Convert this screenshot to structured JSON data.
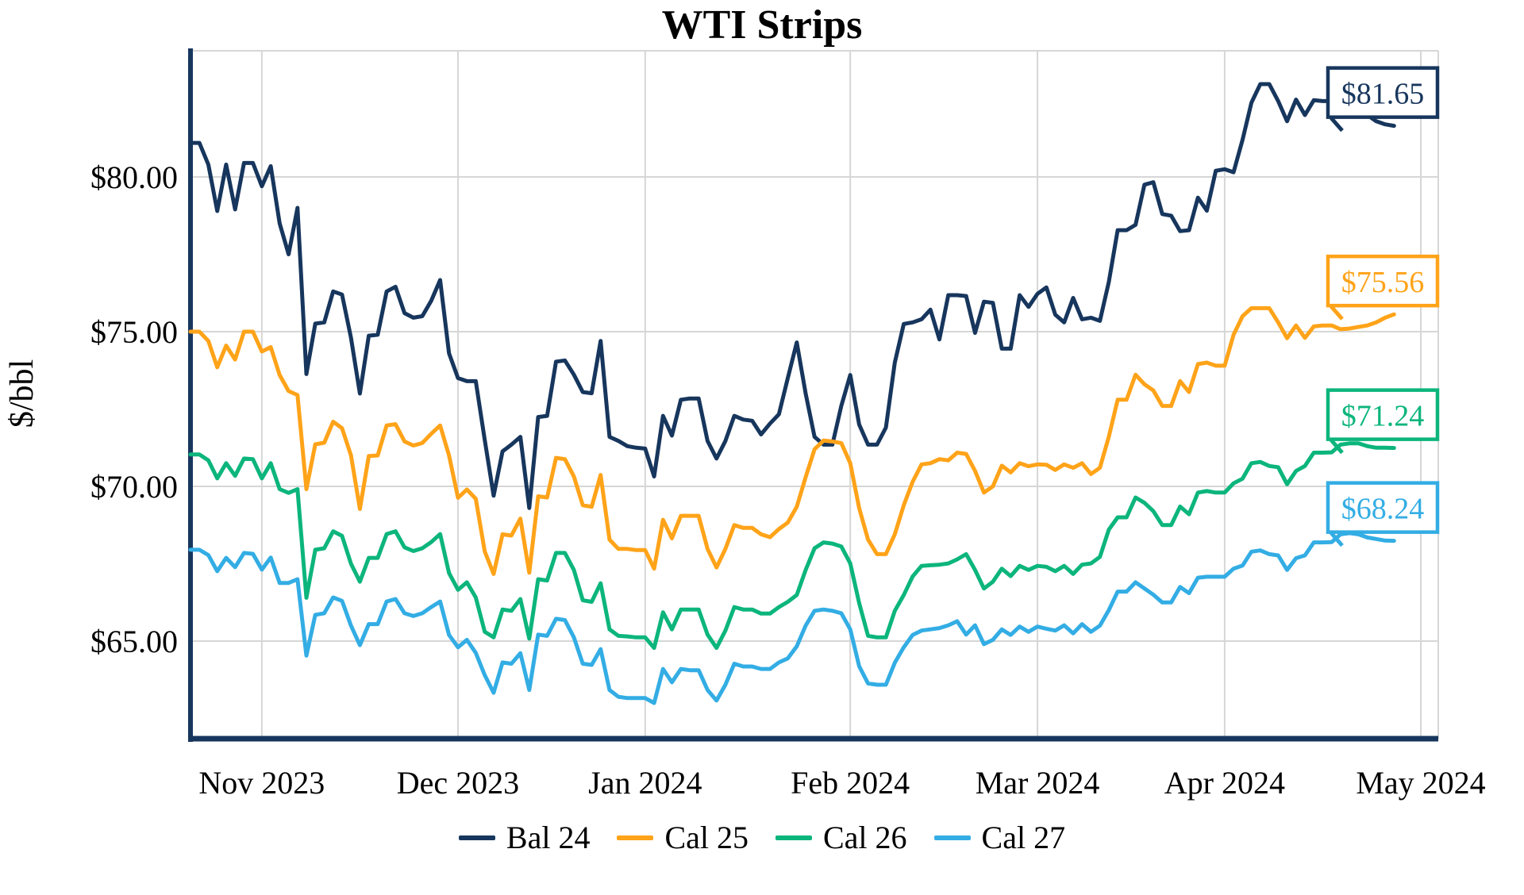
{
  "chart_data": {
    "type": "line",
    "title": "WTI Strips",
    "ylabel": "$/bbl",
    "xlabel": "",
    "grid": true,
    "legend_position": "bottom",
    "y_axis": {
      "tick_values": [
        80,
        75,
        70,
        65
      ],
      "tick_labels": [
        "$80.00",
        "$75.00",
        "$70.00",
        "$65.00"
      ],
      "min": 61.9,
      "max": 84.1
    },
    "x_axis": {
      "tick_labels": [
        "Nov 2023",
        "Dec 2023",
        "Jan 2024",
        "Feb 2024",
        "Mar 2024",
        "Apr 2024",
        "May 2024"
      ],
      "tick_indices": [
        8,
        30,
        51,
        74,
        95,
        116,
        138
      ],
      "index_span": 138,
      "unit": "trading days, late Oct 2023 - late Apr 2024"
    },
    "series": [
      {
        "name": "Bal 24",
        "color": "#17365d",
        "end_label": "$81.65",
        "end_value": 81.65,
        "values": [
          81.1,
          81.1,
          80.4,
          78.9,
          80.4,
          78.95,
          80.45,
          80.45,
          79.7,
          80.35,
          78.5,
          77.5,
          79.0,
          73.63,
          75.26,
          75.3,
          76.3,
          76.2,
          74.8,
          73.0,
          74.87,
          74.9,
          76.3,
          76.45,
          75.6,
          75.45,
          75.5,
          76.0,
          76.67,
          74.3,
          73.5,
          73.4,
          73.4,
          71.5,
          69.7,
          71.13,
          71.35,
          71.6,
          69.3,
          72.24,
          72.28,
          74.03,
          74.07,
          73.61,
          73.05,
          73.01,
          74.7,
          71.6,
          71.47,
          71.3,
          71.25,
          71.22,
          70.32,
          72.28,
          71.64,
          72.8,
          72.84,
          72.84,
          71.47,
          70.9,
          71.47,
          72.28,
          72.16,
          72.12,
          71.68,
          72.03,
          72.33,
          73.5,
          74.65,
          73.0,
          71.6,
          71.35,
          71.35,
          72.6,
          73.6,
          72.0,
          71.35,
          71.35,
          71.9,
          74.0,
          75.25,
          75.3,
          75.4,
          75.71,
          74.75,
          76.18,
          76.18,
          76.15,
          74.96,
          75.97,
          75.93,
          74.45,
          74.45,
          76.18,
          75.8,
          76.22,
          76.43,
          75.55,
          75.3,
          76.09,
          75.4,
          75.45,
          75.35,
          76.6,
          78.28,
          78.28,
          78.45,
          79.75,
          79.83,
          78.8,
          78.75,
          78.25,
          78.28,
          79.33,
          78.91,
          80.2,
          80.25,
          80.15,
          81.2,
          82.4,
          83.0,
          83.0,
          82.45,
          81.8,
          82.5,
          82.0,
          82.48,
          82.45,
          82.45,
          82.3,
          82.35,
          82.35,
          82.0,
          81.8,
          81.7,
          81.65
        ]
      },
      {
        "name": "Cal 25",
        "color": "#ffa319",
        "end_label": "$75.56",
        "end_value": 75.56,
        "values": [
          75.0,
          75.0,
          74.7,
          73.85,
          74.55,
          74.1,
          75.0,
          75.0,
          74.36,
          74.5,
          73.6,
          73.08,
          72.95,
          69.91,
          71.36,
          71.41,
          72.09,
          71.88,
          71.0,
          69.27,
          70.98,
          71.0,
          71.97,
          72.01,
          71.45,
          71.32,
          71.4,
          71.7,
          71.97,
          71.0,
          69.63,
          69.9,
          69.6,
          67.9,
          67.17,
          68.45,
          68.41,
          68.96,
          67.21,
          69.68,
          69.64,
          70.92,
          70.88,
          70.32,
          69.39,
          69.34,
          70.37,
          68.28,
          67.98,
          67.98,
          67.94,
          67.94,
          67.34,
          68.92,
          68.32,
          69.05,
          69.05,
          69.05,
          67.98,
          67.38,
          67.98,
          68.75,
          68.66,
          68.66,
          68.45,
          68.36,
          68.62,
          68.83,
          69.34,
          70.3,
          71.2,
          71.48,
          71.45,
          71.4,
          70.75,
          69.3,
          68.28,
          67.81,
          67.81,
          68.45,
          69.39,
          70.15,
          70.71,
          70.75,
          70.88,
          70.84,
          71.09,
          71.05,
          70.5,
          69.8,
          70.0,
          70.67,
          70.45,
          70.75,
          70.65,
          70.71,
          70.7,
          70.53,
          70.71,
          70.6,
          70.75,
          70.4,
          70.6,
          71.6,
          72.8,
          72.8,
          73.61,
          73.3,
          73.1,
          72.6,
          72.6,
          73.4,
          73.05,
          73.95,
          74.0,
          73.9,
          73.9,
          74.9,
          75.5,
          75.76,
          75.76,
          75.76,
          75.3,
          74.79,
          75.2,
          74.8,
          75.17,
          75.2,
          75.2,
          75.08,
          75.1,
          75.15,
          75.2,
          75.3,
          75.45,
          75.56
        ]
      },
      {
        "name": "Cal 26",
        "color": "#0cb57c",
        "end_label": "$71.24",
        "end_value": 71.24,
        "values": [
          71.03,
          71.03,
          70.84,
          70.26,
          70.75,
          70.34,
          70.9,
          70.88,
          70.26,
          70.75,
          69.91,
          69.79,
          69.91,
          66.4,
          67.95,
          68.0,
          68.55,
          68.4,
          67.5,
          66.92,
          67.69,
          67.69,
          68.46,
          68.55,
          68.03,
          67.91,
          68.0,
          68.2,
          68.46,
          67.2,
          66.66,
          66.9,
          66.41,
          65.3,
          65.12,
          66.02,
          65.98,
          66.36,
          65.08,
          67.0,
          66.96,
          67.85,
          67.85,
          67.3,
          66.32,
          66.27,
          66.87,
          65.38,
          65.17,
          65.15,
          65.12,
          65.12,
          64.78,
          65.93,
          65.38,
          66.02,
          66.02,
          66.02,
          65.21,
          64.78,
          65.34,
          66.1,
          66.02,
          66.02,
          65.89,
          65.89,
          66.1,
          66.27,
          66.49,
          67.3,
          68.0,
          68.19,
          68.15,
          68.06,
          67.51,
          66.23,
          65.17,
          65.12,
          65.12,
          65.98,
          66.49,
          67.09,
          67.43,
          67.45,
          67.47,
          67.51,
          67.64,
          67.81,
          67.3,
          66.7,
          66.92,
          67.34,
          67.1,
          67.43,
          67.3,
          67.43,
          67.4,
          67.26,
          67.43,
          67.17,
          67.47,
          67.51,
          67.72,
          68.6,
          69.0,
          69.0,
          69.64,
          69.47,
          69.2,
          68.75,
          68.75,
          69.35,
          69.1,
          69.8,
          69.85,
          69.8,
          69.8,
          70.1,
          70.25,
          70.75,
          70.79,
          70.66,
          70.62,
          70.07,
          70.5,
          70.66,
          71.09,
          71.09,
          71.1,
          71.35,
          71.39,
          71.39,
          71.3,
          71.25,
          71.25,
          71.24
        ]
      },
      {
        "name": "Cal 27",
        "color": "#33ade4",
        "end_label": "$68.24",
        "end_value": 68.24,
        "values": [
          67.95,
          67.95,
          67.78,
          67.26,
          67.69,
          67.39,
          67.85,
          67.82,
          67.31,
          67.7,
          66.88,
          66.88,
          67.0,
          64.53,
          65.85,
          65.9,
          66.41,
          66.3,
          65.5,
          64.87,
          65.55,
          65.55,
          66.28,
          66.36,
          65.9,
          65.81,
          65.9,
          66.1,
          66.28,
          65.2,
          64.8,
          65.04,
          64.62,
          63.9,
          63.33,
          64.31,
          64.27,
          64.61,
          63.42,
          65.21,
          65.17,
          65.72,
          65.68,
          65.12,
          64.27,
          64.23,
          64.74,
          63.42,
          63.2,
          63.16,
          63.16,
          63.16,
          63.0,
          64.1,
          63.67,
          64.1,
          64.06,
          64.06,
          63.42,
          63.08,
          63.59,
          64.27,
          64.18,
          64.18,
          64.1,
          64.1,
          64.31,
          64.44,
          64.83,
          65.5,
          65.98,
          66.02,
          65.98,
          65.9,
          65.38,
          64.19,
          63.63,
          63.59,
          63.59,
          64.3,
          64.8,
          65.2,
          65.34,
          65.38,
          65.42,
          65.51,
          65.64,
          65.21,
          65.51,
          64.9,
          65.04,
          65.38,
          65.2,
          65.47,
          65.3,
          65.47,
          65.4,
          65.34,
          65.51,
          65.25,
          65.55,
          65.3,
          65.5,
          66.0,
          66.6,
          66.6,
          66.9,
          66.7,
          66.5,
          66.25,
          66.25,
          66.75,
          66.55,
          67.05,
          67.08,
          67.08,
          67.08,
          67.34,
          67.44,
          67.89,
          67.93,
          67.81,
          67.77,
          67.3,
          67.68,
          67.77,
          68.19,
          68.19,
          68.2,
          68.45,
          68.49,
          68.45,
          68.35,
          68.3,
          68.25,
          68.24
        ]
      }
    ],
    "colors": {
      "axis": "#17365d",
      "gridline": "#d6d6d6",
      "background": "#ffffff",
      "text": "#000000"
    }
  }
}
